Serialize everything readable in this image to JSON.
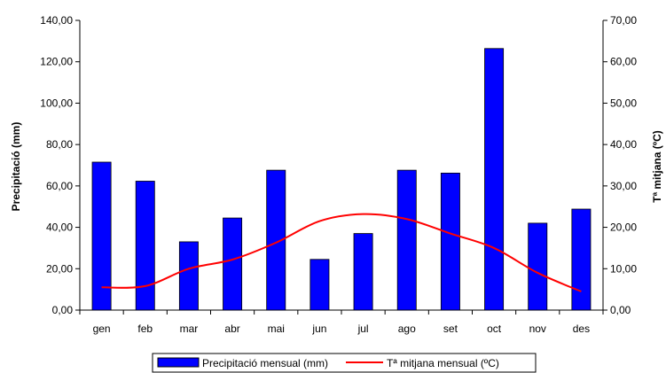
{
  "chart_data": {
    "type": "bar+line",
    "categories": [
      "gen",
      "feb",
      "mar",
      "abr",
      "mai",
      "jun",
      "jul",
      "ago",
      "set",
      "oct",
      "nov",
      "des"
    ],
    "series": [
      {
        "name": "Precipitació mensual (mm)",
        "type": "bar",
        "axis": "left",
        "color": "#0000ff",
        "values": [
          71.5,
          62.3,
          33.0,
          44.5,
          67.6,
          24.5,
          37.0,
          67.6,
          66.2,
          126.4,
          42.0,
          48.8
        ]
      },
      {
        "name": "Tª mitjana mensual (ºC)",
        "type": "line",
        "axis": "right",
        "color": "#ff0000",
        "values": [
          5.5,
          5.8,
          10.0,
          12.2,
          16.3,
          21.5,
          23.2,
          22.0,
          18.5,
          15.0,
          9.0,
          4.5
        ]
      }
    ],
    "ylabel": "Precipitació (mm)",
    "ylabel_right": "Tª mitjana (ºC)",
    "ylim": [
      0,
      140
    ],
    "ylim_right": [
      0,
      70
    ],
    "yticks": [
      "0,00",
      "20,00",
      "40,00",
      "60,00",
      "80,00",
      "100,00",
      "120,00",
      "140,00"
    ],
    "yticks_right": [
      "0,00",
      "10,00",
      "20,00",
      "30,00",
      "40,00",
      "50,00",
      "60,00",
      "70,00"
    ],
    "grid": false,
    "legend": "bottom"
  }
}
